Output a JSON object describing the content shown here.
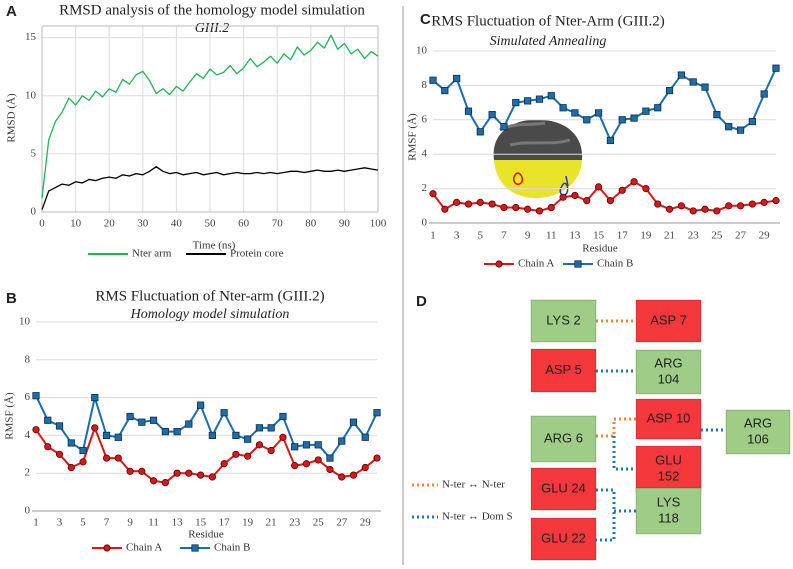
{
  "chart_data": [
    {
      "type": "line",
      "panel": "A",
      "title": "RMSD analysis of the homology model simulation",
      "subtitle": "GIII.2",
      "x_label": "Time (ns)",
      "y_label": "RMSD (Å)",
      "x": [
        0,
        2,
        4,
        6,
        8,
        10,
        12,
        14,
        16,
        18,
        20,
        22,
        24,
        26,
        28,
        30,
        32,
        34,
        36,
        38,
        40,
        42,
        44,
        46,
        48,
        50,
        52,
        54,
        56,
        58,
        60,
        62,
        64,
        66,
        68,
        70,
        72,
        74,
        76,
        78,
        80,
        82,
        84,
        86,
        88,
        90,
        92,
        94,
        96,
        98,
        100
      ],
      "xlim": [
        0,
        100
      ],
      "xticks": [
        0,
        10,
        20,
        30,
        40,
        50,
        60,
        70,
        80,
        90,
        100
      ],
      "ylim": [
        0,
        16
      ],
      "yticks": [
        0,
        5,
        10,
        15
      ],
      "grid": "both",
      "legend": "bottom",
      "series": [
        {
          "name": "Nter arm",
          "color": "#22b35a",
          "values": [
            1.2,
            6.2,
            7.8,
            8.6,
            9.8,
            9.2,
            10.0,
            9.6,
            10.4,
            9.9,
            10.6,
            10.3,
            11.4,
            11.0,
            11.8,
            12.1,
            11.3,
            10.2,
            10.6,
            10.1,
            10.8,
            10.4,
            11.2,
            11.9,
            11.5,
            12.3,
            11.8,
            12.0,
            12.6,
            11.9,
            12.4,
            13.2,
            12.5,
            12.9,
            13.4,
            12.8,
            13.6,
            13.1,
            14.2,
            13.5,
            13.9,
            14.6,
            14.1,
            15.2,
            14.0,
            14.5,
            13.6,
            14.0,
            13.2,
            13.8,
            13.4
          ]
        },
        {
          "name": "Protein core",
          "color": "#000000",
          "values": [
            0.2,
            1.8,
            2.1,
            2.4,
            2.3,
            2.6,
            2.5,
            2.8,
            2.7,
            2.9,
            3.0,
            2.9,
            3.2,
            3.1,
            3.3,
            3.2,
            3.5,
            3.9,
            3.5,
            3.3,
            3.4,
            3.2,
            3.3,
            3.4,
            3.2,
            3.3,
            3.4,
            3.2,
            3.3,
            3.4,
            3.3,
            3.3,
            3.4,
            3.3,
            3.4,
            3.3,
            3.4,
            3.5,
            3.5,
            3.4,
            3.5,
            3.6,
            3.5,
            3.5,
            3.6,
            3.5,
            3.6,
            3.7,
            3.8,
            3.7,
            3.6
          ]
        }
      ]
    },
    {
      "type": "line",
      "panel": "B",
      "title": "RMS Fluctuation of Nter-arm (GIII.2)",
      "subtitle": "Homology model simulation",
      "x_label": "Residue",
      "y_label": "RMSF (Å)",
      "categories": [
        1,
        null,
        3,
        null,
        5,
        null,
        7,
        null,
        9,
        null,
        11,
        null,
        13,
        null,
        15,
        null,
        17,
        null,
        19,
        null,
        21,
        null,
        23,
        null,
        25,
        null,
        27,
        null,
        29,
        null
      ],
      "ylim": [
        0,
        10
      ],
      "yticks": [
        0,
        2,
        4,
        6,
        8,
        10
      ],
      "grid": "y",
      "legend": "bottom",
      "series": [
        {
          "name": "Chain A",
          "color": "#d7191c",
          "marker": "circle",
          "values": [
            4.3,
            3.4,
            3.0,
            2.3,
            2.6,
            4.4,
            2.8,
            2.8,
            2.1,
            2.1,
            1.6,
            1.5,
            2.0,
            2.0,
            1.9,
            1.8,
            2.5,
            3.0,
            2.9,
            3.5,
            3.2,
            3.9,
            2.4,
            2.5,
            2.7,
            2.2,
            1.8,
            1.9,
            2.3,
            2.8
          ]
        },
        {
          "name": "Chain B",
          "color": "#1f6da8",
          "marker": "square",
          "values": [
            6.1,
            4.8,
            4.5,
            3.6,
            3.2,
            6.0,
            4.0,
            3.9,
            5.0,
            4.7,
            4.8,
            4.2,
            4.2,
            4.6,
            5.6,
            4.0,
            5.2,
            4.0,
            3.8,
            4.4,
            4.4,
            5.0,
            3.4,
            3.5,
            3.5,
            2.8,
            3.7,
            4.7,
            3.9,
            5.2
          ]
        }
      ]
    },
    {
      "type": "line",
      "panel": "C",
      "title": "RMS Fluctuation of Nter-Arm (GIII.2)",
      "subtitle": "Simulated Annealing",
      "x_label": "Residue",
      "y_label": "RMSF (Å)",
      "categories": [
        1,
        null,
        3,
        null,
        5,
        null,
        7,
        null,
        9,
        null,
        11,
        null,
        13,
        null,
        15,
        null,
        17,
        null,
        19,
        null,
        21,
        null,
        23,
        null,
        25,
        null,
        27,
        null,
        29,
        null
      ],
      "ylim": [
        0,
        10
      ],
      "yticks": [
        0,
        2,
        4,
        6,
        8,
        10
      ],
      "grid": "y",
      "legend": "bottom",
      "series": [
        {
          "name": "Chain A",
          "color": "#d7191c",
          "marker": "circle",
          "values": [
            1.7,
            0.8,
            1.2,
            1.1,
            1.2,
            1.1,
            0.9,
            0.9,
            0.8,
            0.7,
            0.9,
            1.5,
            1.6,
            1.3,
            2.1,
            1.3,
            1.9,
            2.4,
            2.0,
            1.1,
            0.8,
            1.0,
            0.7,
            0.8,
            0.7,
            1.0,
            1.0,
            1.1,
            1.2,
            1.3
          ]
        },
        {
          "name": "Chain B",
          "color": "#1f6da8",
          "marker": "square",
          "values": [
            8.3,
            7.7,
            8.4,
            6.5,
            5.3,
            6.3,
            5.6,
            7.0,
            7.1,
            7.2,
            7.4,
            6.7,
            6.4,
            6.0,
            6.4,
            4.8,
            6.0,
            6.1,
            6.5,
            6.7,
            7.7,
            8.6,
            8.2,
            7.9,
            6.3,
            5.6,
            5.4,
            5.9,
            7.5,
            9.0
          ]
        }
      ]
    }
  ],
  "diagram": {
    "panel": "D",
    "nodes": [
      {
        "label": [
          "LYS 2"
        ],
        "color": "#9fcd88"
      },
      {
        "label": [
          "ASP 7"
        ],
        "color": "#f5383c"
      },
      {
        "label": [
          "ASP 5"
        ],
        "color": "#f5383c"
      },
      {
        "label": [
          "ARG",
          "104"
        ],
        "color": "#9fcd88"
      },
      {
        "label": [
          "ARG 6"
        ],
        "color": "#9fcd88"
      },
      {
        "label": [
          "ASP 10"
        ],
        "color": "#f5383c"
      },
      {
        "label": [
          "ARG",
          "106"
        ],
        "color": "#9fcd88"
      },
      {
        "label": [
          "GLU",
          "152"
        ],
        "color": "#f5383c"
      },
      {
        "label": [
          "GLU 24"
        ],
        "color": "#f5383c"
      },
      {
        "label": [
          "GLU 22"
        ],
        "color": "#f5383c"
      },
      {
        "label": [
          "LYS",
          "118"
        ],
        "color": "#9fcd88"
      }
    ],
    "legend": [
      {
        "label": "N-ter ↔ N-ter",
        "color": "#e8893a"
      },
      {
        "label": "N-ter ↔ Dom S",
        "color": "#2277b0"
      }
    ]
  }
}
